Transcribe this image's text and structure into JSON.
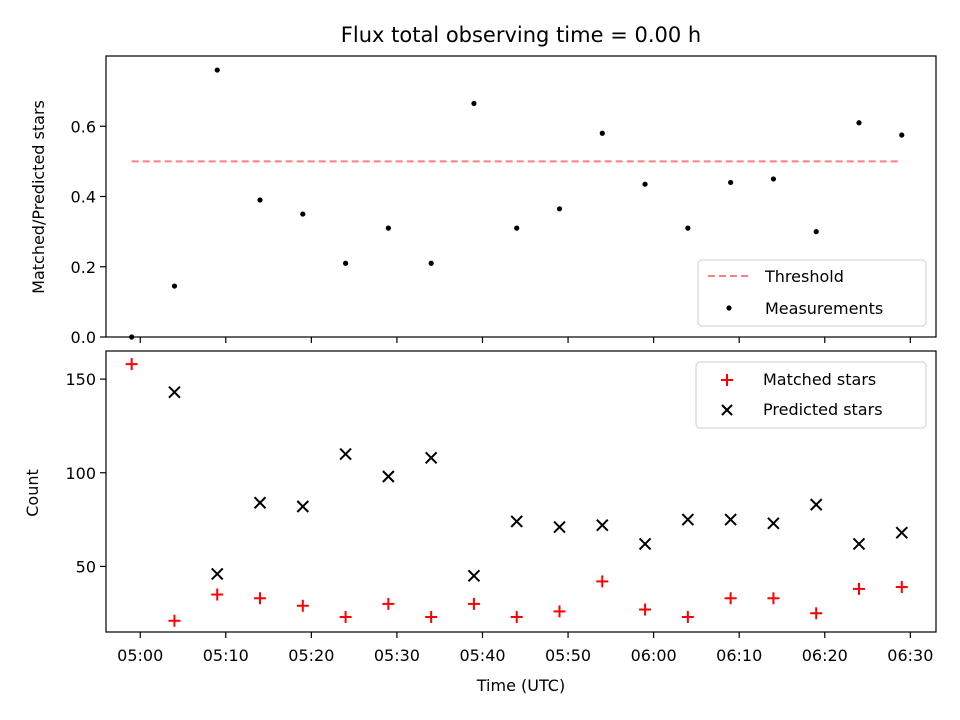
{
  "chart_data": [
    {
      "type": "scatter",
      "title": "Flux total observing time = 0.00 h",
      "xlabel": "",
      "ylabel": "Matched/Predicted stars",
      "ylim": [
        0,
        0.8
      ],
      "yticks": [
        "0.0",
        "0.2",
        "0.4",
        "0.6"
      ],
      "ytick_values": [
        0,
        0.2,
        0.4,
        0.6
      ],
      "legend_position": "lower-right",
      "threshold": {
        "name": "Threshold",
        "value": 0.5,
        "x_start": "04:59",
        "x_end": "06:29",
        "color": "#ff7f7f",
        "style": "dashed"
      },
      "series": [
        {
          "name": "Measurements",
          "marker": "dot",
          "color": "#000000",
          "x": [
            "04:59",
            "05:04",
            "05:09",
            "05:14",
            "05:19",
            "05:24",
            "05:29",
            "05:34",
            "05:39",
            "05:44",
            "05:49",
            "05:54",
            "05:59",
            "06:04",
            "06:09",
            "06:14",
            "06:19",
            "06:24",
            "06:29"
          ],
          "values": [
            0.0,
            0.145,
            0.76,
            0.39,
            0.35,
            0.21,
            0.31,
            0.21,
            0.665,
            0.31,
            0.365,
            0.58,
            0.435,
            0.31,
            0.44,
            0.45,
            0.3,
            0.61,
            0.575
          ]
        }
      ]
    },
    {
      "type": "scatter",
      "title": "",
      "xlabel": "Time (UTC)",
      "ylabel": "Count",
      "ylim": [
        15,
        165
      ],
      "yticks": [
        "50",
        "100",
        "150"
      ],
      "ytick_values": [
        50,
        100,
        150
      ],
      "xticks": [
        "05:00",
        "05:10",
        "05:20",
        "05:30",
        "05:40",
        "05:50",
        "06:00",
        "06:10",
        "06:20",
        "06:30"
      ],
      "xlim": [
        "04:56",
        "06:33"
      ],
      "legend_position": "upper-right",
      "series": [
        {
          "name": "Matched stars",
          "marker": "plus",
          "color": "#ff0000",
          "x": [
            "04:59",
            "05:04",
            "05:09",
            "05:14",
            "05:19",
            "05:24",
            "05:29",
            "05:34",
            "05:39",
            "05:44",
            "05:49",
            "05:54",
            "05:59",
            "06:04",
            "06:09",
            "06:14",
            "06:19",
            "06:24",
            "06:29"
          ],
          "values": [
            158,
            21,
            35,
            33,
            29,
            23,
            30,
            23,
            30,
            23,
            26,
            42,
            27,
            23,
            33,
            33,
            25,
            38,
            39
          ]
        },
        {
          "name": "Predicted stars",
          "marker": "x",
          "color": "#000000",
          "x": [
            "05:04",
            "05:09",
            "05:14",
            "05:19",
            "05:24",
            "05:29",
            "05:34",
            "05:39",
            "05:44",
            "05:49",
            "05:54",
            "05:59",
            "06:04",
            "06:09",
            "06:14",
            "06:19",
            "06:24",
            "06:29"
          ],
          "values": [
            143,
            46,
            84,
            82,
            110,
            98,
            108,
            45,
            74,
            71,
            72,
            62,
            75,
            75,
            73,
            83,
            62,
            68
          ]
        }
      ]
    }
  ]
}
